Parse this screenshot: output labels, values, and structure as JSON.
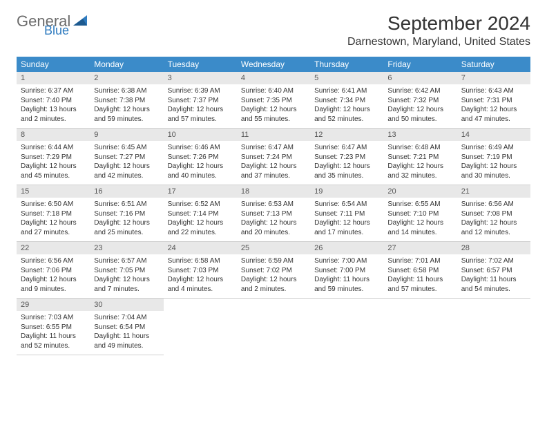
{
  "brand": {
    "name_a": "General",
    "name_b": "Blue"
  },
  "colors": {
    "header_bg": "#3b8bc9",
    "header_fg": "#ffffff",
    "daynum_bg": "#e8e8e8",
    "text": "#333333",
    "logo_blue": "#2f7bbf",
    "logo_gray": "#6b6b6b"
  },
  "title": "September 2024",
  "location": "Darnestown, Maryland, United States",
  "days_of_week": [
    "Sunday",
    "Monday",
    "Tuesday",
    "Wednesday",
    "Thursday",
    "Friday",
    "Saturday"
  ],
  "days": [
    {
      "n": "1",
      "sunrise": "Sunrise: 6:37 AM",
      "sunset": "Sunset: 7:40 PM",
      "daylight": "Daylight: 13 hours and 2 minutes."
    },
    {
      "n": "2",
      "sunrise": "Sunrise: 6:38 AM",
      "sunset": "Sunset: 7:38 PM",
      "daylight": "Daylight: 12 hours and 59 minutes."
    },
    {
      "n": "3",
      "sunrise": "Sunrise: 6:39 AM",
      "sunset": "Sunset: 7:37 PM",
      "daylight": "Daylight: 12 hours and 57 minutes."
    },
    {
      "n": "4",
      "sunrise": "Sunrise: 6:40 AM",
      "sunset": "Sunset: 7:35 PM",
      "daylight": "Daylight: 12 hours and 55 minutes."
    },
    {
      "n": "5",
      "sunrise": "Sunrise: 6:41 AM",
      "sunset": "Sunset: 7:34 PM",
      "daylight": "Daylight: 12 hours and 52 minutes."
    },
    {
      "n": "6",
      "sunrise": "Sunrise: 6:42 AM",
      "sunset": "Sunset: 7:32 PM",
      "daylight": "Daylight: 12 hours and 50 minutes."
    },
    {
      "n": "7",
      "sunrise": "Sunrise: 6:43 AM",
      "sunset": "Sunset: 7:31 PM",
      "daylight": "Daylight: 12 hours and 47 minutes."
    },
    {
      "n": "8",
      "sunrise": "Sunrise: 6:44 AM",
      "sunset": "Sunset: 7:29 PM",
      "daylight": "Daylight: 12 hours and 45 minutes."
    },
    {
      "n": "9",
      "sunrise": "Sunrise: 6:45 AM",
      "sunset": "Sunset: 7:27 PM",
      "daylight": "Daylight: 12 hours and 42 minutes."
    },
    {
      "n": "10",
      "sunrise": "Sunrise: 6:46 AM",
      "sunset": "Sunset: 7:26 PM",
      "daylight": "Daylight: 12 hours and 40 minutes."
    },
    {
      "n": "11",
      "sunrise": "Sunrise: 6:47 AM",
      "sunset": "Sunset: 7:24 PM",
      "daylight": "Daylight: 12 hours and 37 minutes."
    },
    {
      "n": "12",
      "sunrise": "Sunrise: 6:47 AM",
      "sunset": "Sunset: 7:23 PM",
      "daylight": "Daylight: 12 hours and 35 minutes."
    },
    {
      "n": "13",
      "sunrise": "Sunrise: 6:48 AM",
      "sunset": "Sunset: 7:21 PM",
      "daylight": "Daylight: 12 hours and 32 minutes."
    },
    {
      "n": "14",
      "sunrise": "Sunrise: 6:49 AM",
      "sunset": "Sunset: 7:19 PM",
      "daylight": "Daylight: 12 hours and 30 minutes."
    },
    {
      "n": "15",
      "sunrise": "Sunrise: 6:50 AM",
      "sunset": "Sunset: 7:18 PM",
      "daylight": "Daylight: 12 hours and 27 minutes."
    },
    {
      "n": "16",
      "sunrise": "Sunrise: 6:51 AM",
      "sunset": "Sunset: 7:16 PM",
      "daylight": "Daylight: 12 hours and 25 minutes."
    },
    {
      "n": "17",
      "sunrise": "Sunrise: 6:52 AM",
      "sunset": "Sunset: 7:14 PM",
      "daylight": "Daylight: 12 hours and 22 minutes."
    },
    {
      "n": "18",
      "sunrise": "Sunrise: 6:53 AM",
      "sunset": "Sunset: 7:13 PM",
      "daylight": "Daylight: 12 hours and 20 minutes."
    },
    {
      "n": "19",
      "sunrise": "Sunrise: 6:54 AM",
      "sunset": "Sunset: 7:11 PM",
      "daylight": "Daylight: 12 hours and 17 minutes."
    },
    {
      "n": "20",
      "sunrise": "Sunrise: 6:55 AM",
      "sunset": "Sunset: 7:10 PM",
      "daylight": "Daylight: 12 hours and 14 minutes."
    },
    {
      "n": "21",
      "sunrise": "Sunrise: 6:56 AM",
      "sunset": "Sunset: 7:08 PM",
      "daylight": "Daylight: 12 hours and 12 minutes."
    },
    {
      "n": "22",
      "sunrise": "Sunrise: 6:56 AM",
      "sunset": "Sunset: 7:06 PM",
      "daylight": "Daylight: 12 hours and 9 minutes."
    },
    {
      "n": "23",
      "sunrise": "Sunrise: 6:57 AM",
      "sunset": "Sunset: 7:05 PM",
      "daylight": "Daylight: 12 hours and 7 minutes."
    },
    {
      "n": "24",
      "sunrise": "Sunrise: 6:58 AM",
      "sunset": "Sunset: 7:03 PM",
      "daylight": "Daylight: 12 hours and 4 minutes."
    },
    {
      "n": "25",
      "sunrise": "Sunrise: 6:59 AM",
      "sunset": "Sunset: 7:02 PM",
      "daylight": "Daylight: 12 hours and 2 minutes."
    },
    {
      "n": "26",
      "sunrise": "Sunrise: 7:00 AM",
      "sunset": "Sunset: 7:00 PM",
      "daylight": "Daylight: 11 hours and 59 minutes."
    },
    {
      "n": "27",
      "sunrise": "Sunrise: 7:01 AM",
      "sunset": "Sunset: 6:58 PM",
      "daylight": "Daylight: 11 hours and 57 minutes."
    },
    {
      "n": "28",
      "sunrise": "Sunrise: 7:02 AM",
      "sunset": "Sunset: 6:57 PM",
      "daylight": "Daylight: 11 hours and 54 minutes."
    },
    {
      "n": "29",
      "sunrise": "Sunrise: 7:03 AM",
      "sunset": "Sunset: 6:55 PM",
      "daylight": "Daylight: 11 hours and 52 minutes."
    },
    {
      "n": "30",
      "sunrise": "Sunrise: 7:04 AM",
      "sunset": "Sunset: 6:54 PM",
      "daylight": "Daylight: 11 hours and 49 minutes."
    }
  ],
  "grid": {
    "start_weekday": 0,
    "rows": 5,
    "cols": 7
  }
}
